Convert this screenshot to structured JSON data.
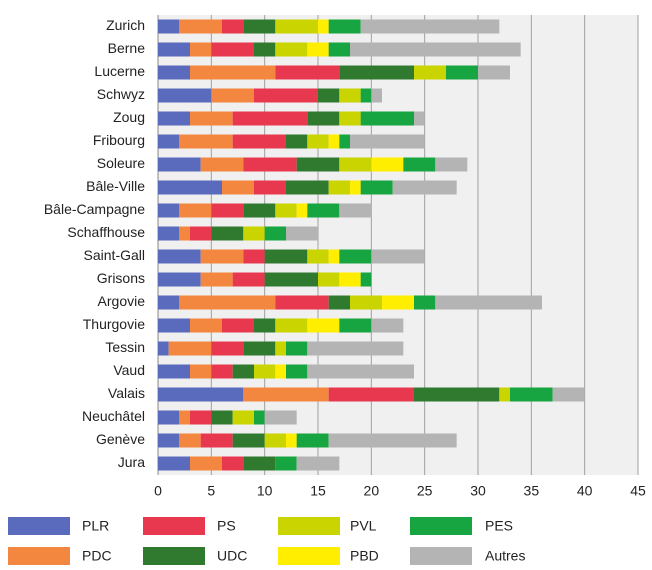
{
  "chart_data": {
    "type": "bar",
    "orientation": "horizontal",
    "stacked": true,
    "grid": true,
    "categories": [
      "Zurich",
      "Berne",
      "Lucerne",
      "Schwyz",
      "Zoug",
      "Fribourg",
      "Soleure",
      "Bâle-Ville",
      "Bâle-Campagne",
      "Schaffhouse",
      "Saint-Gall",
      "Grisons",
      "Argovie",
      "Thurgovie",
      "Tessin",
      "Vaud",
      "Valais",
      "Neuchâtel",
      "Genève",
      "Jura"
    ],
    "xlim": [
      0,
      45
    ],
    "xticks": [
      0,
      5,
      10,
      15,
      20,
      25,
      30,
      35,
      40,
      45
    ],
    "series": [
      {
        "name": "PLR",
        "color": "#5a6abd",
        "values": [
          2,
          3,
          3,
          5,
          3,
          2,
          4,
          6,
          2,
          2,
          4,
          4,
          2,
          3,
          1,
          3,
          8,
          2,
          2,
          3
        ]
      },
      {
        "name": "PDC",
        "color": "#f4873f",
        "values": [
          4,
          2,
          8,
          4,
          4,
          5,
          4,
          3,
          3,
          1,
          4,
          3,
          9,
          3,
          4,
          2,
          8,
          1,
          2,
          3
        ]
      },
      {
        "name": "PS",
        "color": "#e8384f",
        "values": [
          2,
          4,
          6,
          6,
          7,
          5,
          5,
          3,
          3,
          2,
          2,
          3,
          5,
          3,
          3,
          2,
          8,
          2,
          3,
          2
        ]
      },
      {
        "name": "UDC",
        "color": "#2f7a2f",
        "values": [
          3,
          2,
          7,
          2,
          3,
          2,
          4,
          4,
          3,
          3,
          4,
          5,
          2,
          2,
          3,
          2,
          8,
          2,
          3,
          3
        ]
      },
      {
        "name": "PVL",
        "color": "#c9d400",
        "values": [
          4,
          3,
          3,
          2,
          2,
          2,
          3,
          2,
          2,
          2,
          2,
          2,
          3,
          3,
          1,
          2,
          1,
          2,
          2,
          0
        ]
      },
      {
        "name": "PBD",
        "color": "#ffee00",
        "values": [
          1,
          2,
          0,
          0,
          0,
          1,
          3,
          1,
          1,
          0,
          1,
          2,
          3,
          3,
          0,
          1,
          0,
          0,
          1,
          0
        ]
      },
      {
        "name": "PES",
        "color": "#17a541",
        "values": [
          3,
          2,
          3,
          1,
          5,
          1,
          3,
          3,
          3,
          2,
          3,
          1,
          2,
          3,
          2,
          2,
          4,
          1,
          3,
          2
        ]
      },
      {
        "name": "Autres",
        "color": "#b4b4b4",
        "values": [
          13,
          16,
          3,
          1,
          1,
          7,
          3,
          6,
          3,
          3,
          5,
          0,
          10,
          3,
          9,
          10,
          3,
          3,
          12,
          4
        ]
      }
    ]
  }
}
